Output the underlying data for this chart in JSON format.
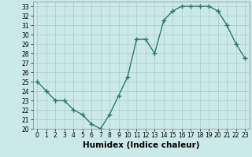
{
  "x": [
    0,
    1,
    2,
    3,
    4,
    5,
    6,
    7,
    8,
    9,
    10,
    11,
    12,
    13,
    14,
    15,
    16,
    17,
    18,
    19,
    20,
    21,
    22,
    23
  ],
  "y": [
    25,
    24,
    23,
    23,
    22,
    21.5,
    20.5,
    20,
    21.5,
    23.5,
    25.5,
    29.5,
    29.5,
    28,
    31.5,
    32.5,
    33,
    33,
    33,
    33,
    32.5,
    31,
    29,
    27.5
  ],
  "line_color": "#2a7a6a",
  "marker": "+",
  "marker_size": 4,
  "xlabel": "Humidex (Indice chaleur)",
  "xlim": [
    -0.5,
    23.5
  ],
  "ylim": [
    20,
    33.5
  ],
  "yticks": [
    20,
    21,
    22,
    23,
    24,
    25,
    26,
    27,
    28,
    29,
    30,
    31,
    32,
    33
  ],
  "xticks": [
    0,
    1,
    2,
    3,
    4,
    5,
    6,
    7,
    8,
    9,
    10,
    11,
    12,
    13,
    14,
    15,
    16,
    17,
    18,
    19,
    20,
    21,
    22,
    23
  ],
  "bg_color": "#cce9e9",
  "grid_color": "#aacccc",
  "line_width": 1.0,
  "tick_fontsize": 5.5,
  "xlabel_fontsize": 7.5
}
